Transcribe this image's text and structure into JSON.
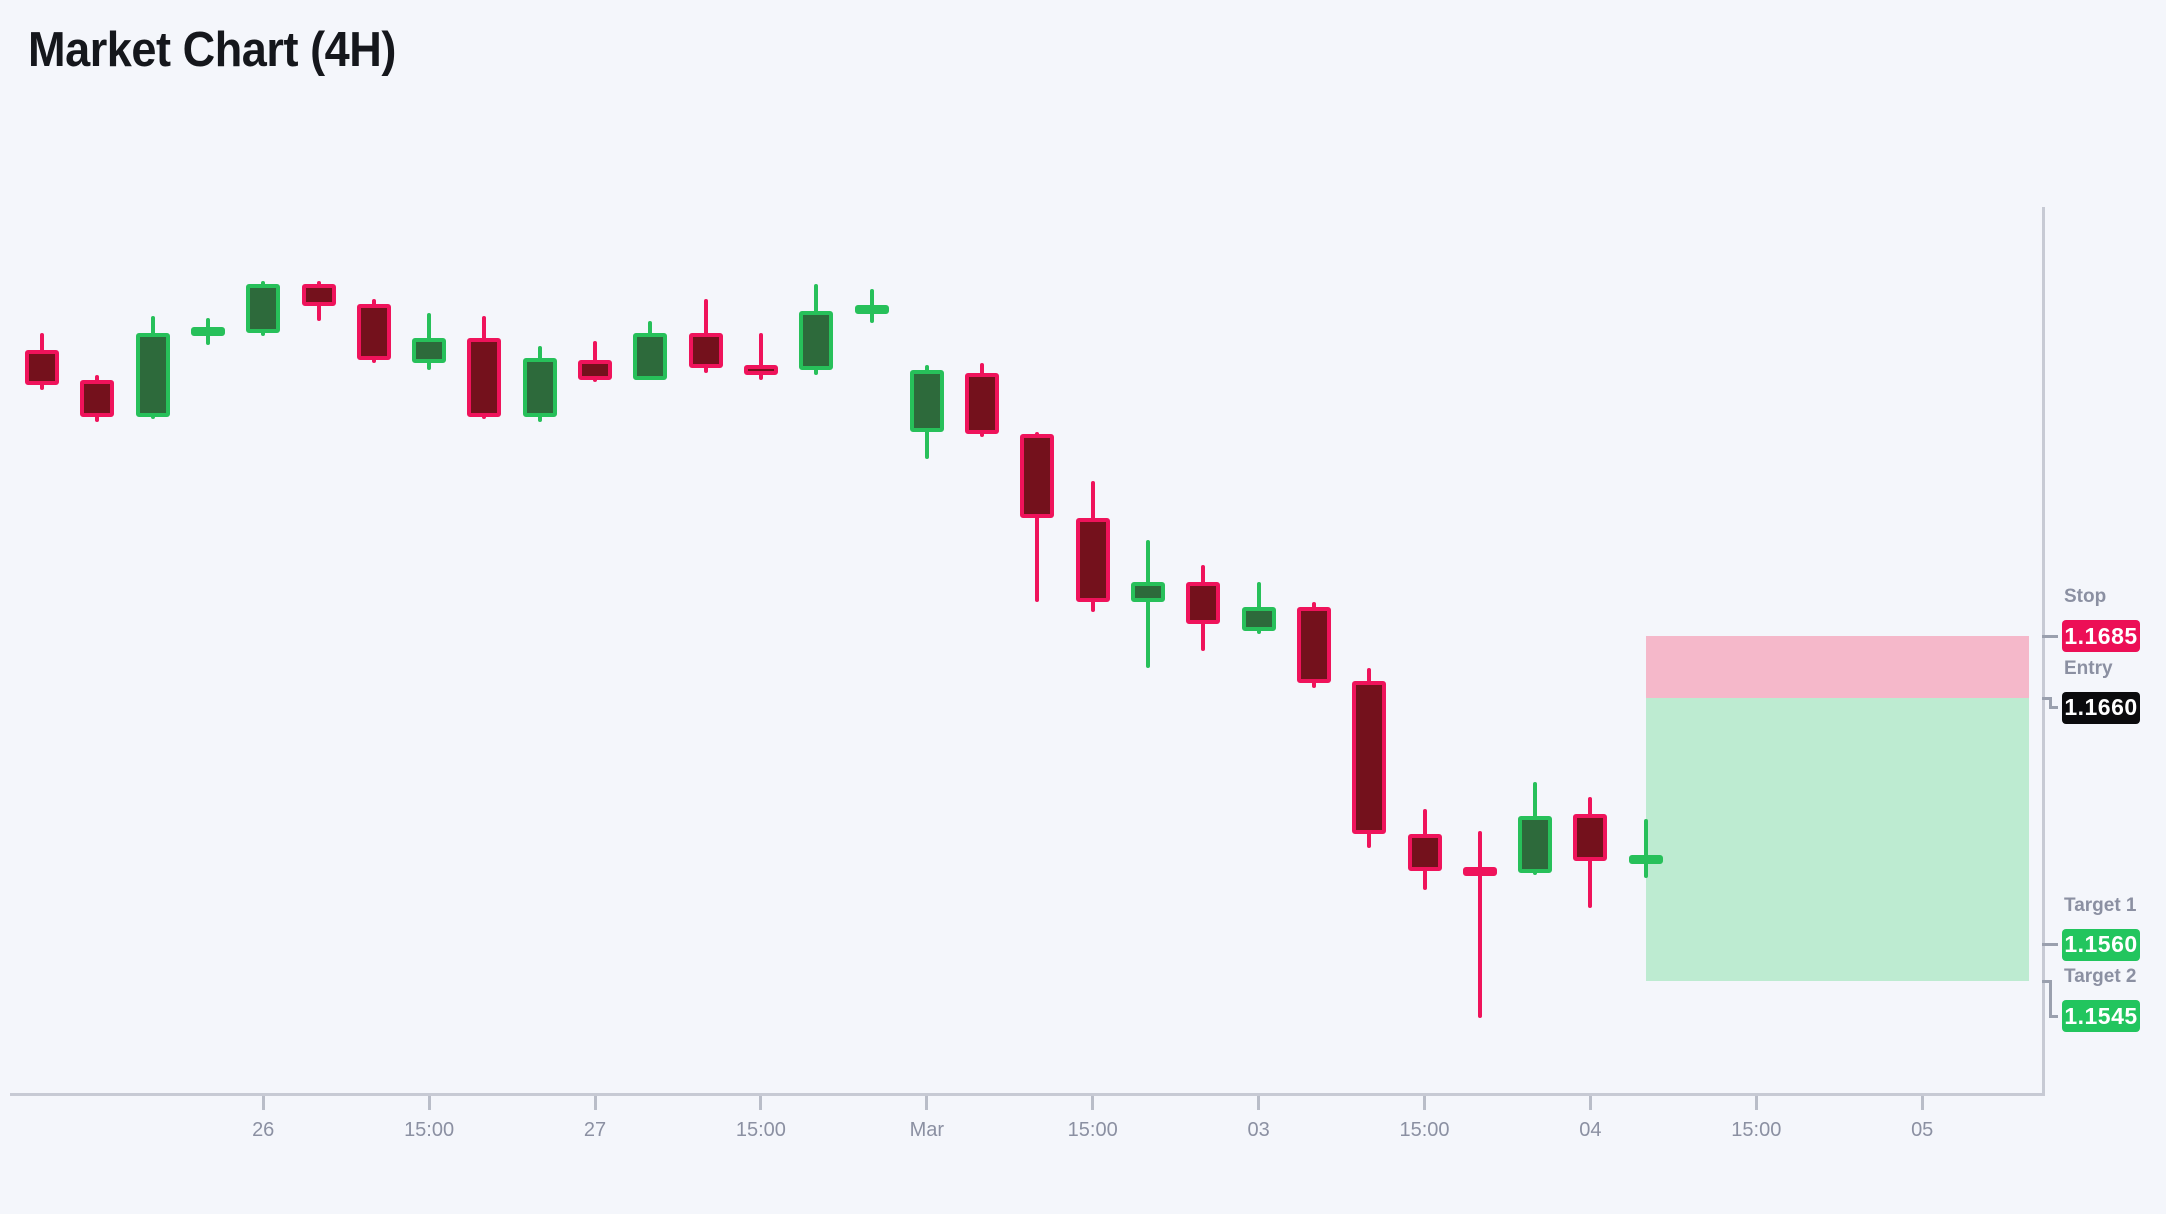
{
  "title": "Market Chart (4H)",
  "colors": {
    "background": "#f4f6fb",
    "bull_border": "#27c05a",
    "bull_fill": "#2d6a3b",
    "bear_border": "#ef135b",
    "bear_fill": "#74111c",
    "axis_line": "#c7cad4",
    "tick_text": "#8b90a2",
    "level_label_text": "#8b90a2",
    "connector": "#9aa0ae",
    "badge_crimson": "#ec0f56",
    "badge_black": "#0b0b0d",
    "badge_green": "#22c55e",
    "badge_text": "#ffffff",
    "zone_stop": "#f5b8ca",
    "zone_profit": "#bdebd1",
    "title_text": "#15171c"
  },
  "chart_data": {
    "type": "candlestick",
    "title": "Market Chart (4H)",
    "timeframe": "4H",
    "grid": false,
    "price_range_visible": [
      1.1494,
      1.184
    ],
    "x_ticks": [
      {
        "slot": 4,
        "label": "26"
      },
      {
        "slot": 7,
        "label": "15:00"
      },
      {
        "slot": 10,
        "label": "27"
      },
      {
        "slot": 13,
        "label": "15:00"
      },
      {
        "slot": 16,
        "label": "Mar"
      },
      {
        "slot": 19,
        "label": "15:00"
      },
      {
        "slot": 22,
        "label": "03"
      },
      {
        "slot": 25,
        "label": "15:00"
      },
      {
        "slot": 28,
        "label": "04"
      },
      {
        "slot": 31,
        "label": "15:00"
      },
      {
        "slot": 34,
        "label": "05"
      }
    ],
    "candles": [
      {
        "o": 1.1801,
        "h": 1.1808,
        "l": 1.1785,
        "c": 1.1787
      },
      {
        "o": 1.1789,
        "h": 1.1791,
        "l": 1.1772,
        "c": 1.1774
      },
      {
        "o": 1.1774,
        "h": 1.1815,
        "l": 1.1773,
        "c": 1.1808
      },
      {
        "o": 1.1807,
        "h": 1.1814,
        "l": 1.1803,
        "c": 1.181
      },
      {
        "o": 1.1808,
        "h": 1.1829,
        "l": 1.1807,
        "c": 1.1828
      },
      {
        "o": 1.1828,
        "h": 1.1829,
        "l": 1.1813,
        "c": 1.1819
      },
      {
        "o": 1.182,
        "h": 1.1822,
        "l": 1.1796,
        "c": 1.1797
      },
      {
        "o": 1.1796,
        "h": 1.1816,
        "l": 1.1793,
        "c": 1.1806
      },
      {
        "o": 1.1806,
        "h": 1.1815,
        "l": 1.1773,
        "c": 1.1774
      },
      {
        "o": 1.1774,
        "h": 1.1803,
        "l": 1.1772,
        "c": 1.1798
      },
      {
        "o": 1.1797,
        "h": 1.1805,
        "l": 1.1788,
        "c": 1.1789
      },
      {
        "o": 1.1789,
        "h": 1.1813,
        "l": 1.1789,
        "c": 1.1808
      },
      {
        "o": 1.1808,
        "h": 1.1822,
        "l": 1.1792,
        "c": 1.1794
      },
      {
        "o": 1.1795,
        "h": 1.1808,
        "l": 1.1789,
        "c": 1.1791
      },
      {
        "o": 1.1793,
        "h": 1.1828,
        "l": 1.1791,
        "c": 1.1817
      },
      {
        "o": 1.1817,
        "h": 1.1826,
        "l": 1.1812,
        "c": 1.1818
      },
      {
        "o": 1.1768,
        "h": 1.1795,
        "l": 1.1757,
        "c": 1.1793
      },
      {
        "o": 1.1792,
        "h": 1.1796,
        "l": 1.1766,
        "c": 1.1767
      },
      {
        "o": 1.1767,
        "h": 1.1768,
        "l": 1.1699,
        "c": 1.1733
      },
      {
        "o": 1.1733,
        "h": 1.1748,
        "l": 1.1695,
        "c": 1.1699
      },
      {
        "o": 1.1699,
        "h": 1.1724,
        "l": 1.1672,
        "c": 1.1707
      },
      {
        "o": 1.1707,
        "h": 1.1714,
        "l": 1.1679,
        "c": 1.169
      },
      {
        "o": 1.1687,
        "h": 1.1707,
        "l": 1.1686,
        "c": 1.1697
      },
      {
        "o": 1.1697,
        "h": 1.1699,
        "l": 1.1664,
        "c": 1.1666
      },
      {
        "o": 1.1667,
        "h": 1.1672,
        "l": 1.1599,
        "c": 1.1605
      },
      {
        "o": 1.1605,
        "h": 1.1615,
        "l": 1.1582,
        "c": 1.159
      },
      {
        "o": 1.159,
        "h": 1.1606,
        "l": 1.153,
        "c": 1.1589
      },
      {
        "o": 1.1589,
        "h": 1.1626,
        "l": 1.1588,
        "c": 1.1612
      },
      {
        "o": 1.1613,
        "h": 1.162,
        "l": 1.1575,
        "c": 1.1594
      },
      {
        "o": 1.1594,
        "h": 1.1611,
        "l": 1.1587,
        "c": 1.1595
      }
    ],
    "levels": [
      {
        "id": "stop",
        "label": "Stop",
        "value": "1.1685",
        "price": 1.1685,
        "badge": "crimson"
      },
      {
        "id": "entry",
        "label": "Entry",
        "value": "1.1660",
        "price": 1.166,
        "badge": "black"
      },
      {
        "id": "target1",
        "label": "Target 1",
        "value": "1.1560",
        "price": 1.156,
        "badge": "green"
      },
      {
        "id": "target2",
        "label": "Target 2",
        "value": "1.1545",
        "price": 1.1545,
        "badge": "green"
      }
    ],
    "zones": [
      {
        "id": "stop-zone",
        "from_price": 1.1685,
        "to_price": 1.166,
        "color_key": "zone_stop"
      },
      {
        "id": "profit-zone",
        "from_price": 1.166,
        "to_price": 1.1545,
        "color_key": "zone_profit"
      }
    ]
  }
}
